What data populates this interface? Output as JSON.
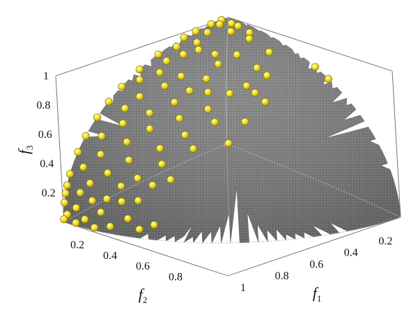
{
  "chart_data": {
    "type": "scatter",
    "subtype": "3d-scatter-over-spherical-pareto-front",
    "title": "",
    "axes": {
      "f1": {
        "label": "f",
        "sub": "1",
        "ticks": [
          "0.2",
          "0.4",
          "0.6",
          "0.8",
          "1"
        ],
        "range": [
          0,
          1
        ]
      },
      "f2": {
        "label": "f",
        "sub": "2",
        "ticks": [
          "0.2",
          "0.4",
          "0.6",
          "0.8"
        ],
        "range": [
          0,
          1
        ]
      },
      "f3": {
        "label": "f",
        "sub": "3",
        "ticks": [
          "0.2",
          "0.4",
          "0.6",
          "0.8",
          "1"
        ],
        "range": [
          0,
          1
        ]
      }
    },
    "surface": {
      "shape": "octant of unit sphere",
      "color": "#7a7a7a"
    },
    "marker_color": "#f2e22a",
    "marker_edge": "#8a7a00",
    "grid": false,
    "legend": "none",
    "points": [
      [
        0.0,
        0.04,
        1.0
      ],
      [
        0.03,
        0.08,
        0.99
      ],
      [
        0.06,
        0.04,
        0.99
      ],
      [
        0.0,
        0.1,
        0.99
      ],
      [
        0.1,
        0.04,
        0.99
      ],
      [
        0.0,
        0.19,
        0.98
      ],
      [
        0.05,
        0.17,
        0.98
      ],
      [
        0.12,
        0.1,
        0.99
      ],
      [
        0.18,
        0.05,
        0.98
      ],
      [
        0.22,
        0.09,
        0.97
      ],
      [
        0.0,
        0.26,
        0.97
      ],
      [
        0.08,
        0.26,
        0.96
      ],
      [
        0.03,
        0.33,
        0.94
      ],
      [
        0.13,
        0.3,
        0.95
      ],
      [
        0.1,
        0.36,
        0.93
      ],
      [
        0.0,
        0.41,
        0.91
      ],
      [
        0.07,
        0.43,
        0.9
      ],
      [
        0.21,
        0.28,
        0.94
      ],
      [
        0.28,
        0.22,
        0.94
      ],
      [
        0.27,
        0.32,
        0.91
      ],
      [
        0.35,
        0.1,
        0.93
      ],
      [
        0.4,
        0.22,
        0.89
      ],
      [
        0.45,
        0.33,
        0.83
      ],
      [
        0.46,
        0.22,
        0.86
      ],
      [
        0.52,
        0.0,
        0.85
      ],
      [
        0.6,
        0.0,
        0.8
      ],
      [
        0.2,
        0.47,
        0.86
      ],
      [
        0.3,
        0.42,
        0.86
      ],
      [
        0.1,
        0.5,
        0.86
      ],
      [
        0.0,
        0.52,
        0.85
      ],
      [
        0.05,
        0.57,
        0.82
      ],
      [
        0.18,
        0.55,
        0.82
      ],
      [
        0.29,
        0.51,
        0.81
      ],
      [
        0.36,
        0.47,
        0.81
      ],
      [
        0.43,
        0.41,
        0.8
      ],
      [
        0.5,
        0.33,
        0.8
      ],
      [
        0.0,
        0.63,
        0.78
      ],
      [
        0.12,
        0.64,
        0.76
      ],
      [
        0.28,
        0.59,
        0.76
      ],
      [
        0.42,
        0.53,
        0.74
      ],
      [
        0.56,
        0.33,
        0.76
      ],
      [
        0.0,
        0.71,
        0.71
      ],
      [
        0.1,
        0.71,
        0.7
      ],
      [
        0.22,
        0.68,
        0.7
      ],
      [
        0.35,
        0.63,
        0.69
      ],
      [
        0.48,
        0.55,
        0.68
      ],
      [
        0.57,
        0.46,
        0.68
      ],
      [
        0.0,
        0.78,
        0.63
      ],
      [
        0.14,
        0.76,
        0.63
      ],
      [
        0.27,
        0.73,
        0.63
      ],
      [
        0.42,
        0.67,
        0.62
      ],
      [
        0.08,
        0.83,
        0.55
      ],
      [
        0.21,
        0.81,
        0.55
      ],
      [
        0.36,
        0.76,
        0.54
      ],
      [
        0.48,
        0.68,
        0.55
      ],
      [
        0.58,
        0.57,
        0.58
      ],
      [
        0.0,
        0.85,
        0.53
      ],
      [
        0.12,
        0.88,
        0.46
      ],
      [
        0.26,
        0.85,
        0.46
      ],
      [
        0.4,
        0.79,
        0.46
      ],
      [
        0.0,
        0.9,
        0.44
      ],
      [
        0.06,
        0.93,
        0.37
      ],
      [
        0.19,
        0.91,
        0.37
      ],
      [
        0.33,
        0.87,
        0.37
      ],
      [
        0.46,
        0.8,
        0.38
      ],
      [
        0.0,
        0.95,
        0.31
      ],
      [
        0.12,
        0.95,
        0.29
      ],
      [
        0.27,
        0.91,
        0.31
      ],
      [
        0.4,
        0.85,
        0.34
      ],
      [
        0.0,
        0.97,
        0.24
      ],
      [
        0.08,
        0.97,
        0.22
      ],
      [
        0.22,
        0.95,
        0.22
      ],
      [
        0.36,
        0.9,
        0.24
      ],
      [
        0.0,
        0.98,
        0.19
      ],
      [
        0.15,
        0.97,
        0.19
      ],
      [
        0.29,
        0.93,
        0.22
      ],
      [
        0.0,
        0.99,
        0.13
      ],
      [
        0.07,
        0.99,
        0.12
      ],
      [
        0.2,
        0.97,
        0.13
      ],
      [
        0.33,
        0.94,
        0.12
      ],
      [
        0.02,
        1.0,
        0.06
      ],
      [
        0.12,
        0.99,
        0.06
      ],
      [
        0.25,
        0.97,
        0.05
      ],
      [
        0.0,
        1.0,
        0.02
      ],
      [
        0.07,
        1.0,
        0.02
      ],
      [
        0.17,
        0.98,
        0.02
      ],
      [
        0.38,
        0.92,
        0.06
      ],
      [
        0.44,
        0.89,
        0.1
      ]
    ]
  }
}
